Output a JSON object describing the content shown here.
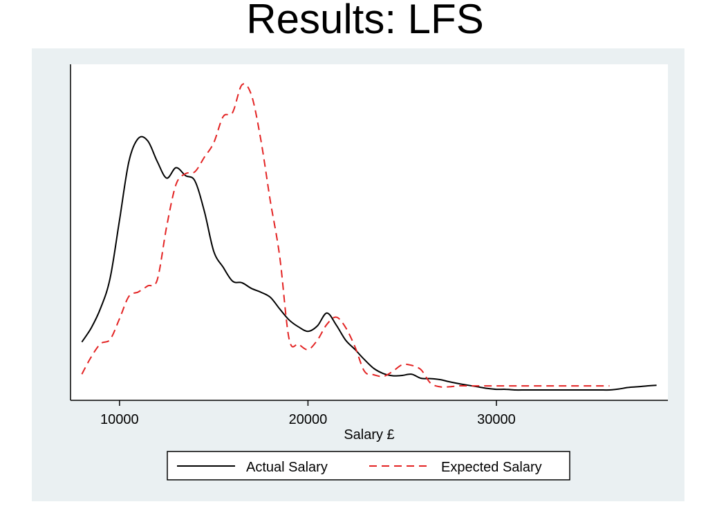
{
  "slide": {
    "title": "Results: LFS"
  },
  "colors": {
    "panel_background": "#eaf0f2",
    "plot_background": "#ffffff",
    "actual": "#000000",
    "expected": "#e32222"
  },
  "chart_data": {
    "type": "line",
    "title": "",
    "xlabel": "Salary £",
    "ylabel": "",
    "xlim": [
      7400,
      39100
    ],
    "ylim": [
      0,
      1
    ],
    "x_ticks": [
      10000,
      20000,
      30000
    ],
    "y_ticks": [],
    "y_axis_labels_shown": false,
    "grid": false,
    "legend_position": "bottom",
    "series": [
      {
        "name": "Actual Salary",
        "line_style": "solid",
        "color": "#000000",
        "x": [
          8000,
          8500,
          9000,
          9500,
          10000,
          10500,
          11000,
          11500,
          12000,
          12500,
          13000,
          13500,
          14000,
          14500,
          15000,
          15500,
          16000,
          16500,
          17000,
          17500,
          18000,
          18500,
          19000,
          19500,
          20000,
          20500,
          21000,
          21500,
          22000,
          22500,
          23000,
          23500,
          24000,
          24500,
          25000,
          25500,
          26000,
          26500,
          27000,
          27500,
          28000,
          28500,
          29000,
          29500,
          30000,
          30500,
          31000,
          31500,
          32000,
          32500,
          33000,
          33500,
          34000,
          34500,
          35000,
          35500,
          36000,
          36500,
          37000,
          37500,
          38000,
          38500
        ],
        "values": [
          0.152,
          0.197,
          0.26,
          0.354,
          0.539,
          0.725,
          0.798,
          0.79,
          0.725,
          0.672,
          0.705,
          0.68,
          0.663,
          0.567,
          0.44,
          0.389,
          0.345,
          0.34,
          0.322,
          0.31,
          0.294,
          0.257,
          0.222,
          0.2,
          0.186,
          0.203,
          0.244,
          0.206,
          0.158,
          0.128,
          0.096,
          0.068,
          0.052,
          0.045,
          0.046,
          0.05,
          0.037,
          0.036,
          0.033,
          0.026,
          0.02,
          0.015,
          0.01,
          0.005,
          0.002,
          0.002,
          0.0,
          0.0,
          0.0,
          0.0,
          0.0,
          0.0,
          0.0,
          0.0,
          0.0,
          0.0,
          0.0,
          0.003,
          0.008,
          0.01,
          0.013,
          0.015
        ]
      },
      {
        "name": "Expected Salary",
        "line_style": "dashed",
        "color": "#e32222",
        "x": [
          8000,
          8500,
          9000,
          9500,
          10000,
          10500,
          11000,
          11500,
          12000,
          12500,
          13000,
          13500,
          14000,
          14500,
          15000,
          15500,
          16000,
          16500,
          17000,
          17500,
          18000,
          18500,
          19000,
          19500,
          20000,
          20500,
          21000,
          21500,
          22000,
          22500,
          23000,
          23500,
          24000,
          24500,
          25000,
          25500,
          26000,
          26500,
          27000,
          27500,
          28000,
          28500,
          29000,
          29500,
          30000,
          30500,
          31000,
          31500,
          32000,
          32500,
          33000,
          33500,
          34000,
          34500,
          35000,
          35500,
          36000
        ],
        "values": [
          0.05,
          0.105,
          0.147,
          0.16,
          0.226,
          0.297,
          0.311,
          0.33,
          0.349,
          0.518,
          0.652,
          0.686,
          0.692,
          0.738,
          0.784,
          0.867,
          0.88,
          0.968,
          0.935,
          0.793,
          0.6,
          0.424,
          0.161,
          0.145,
          0.128,
          0.158,
          0.208,
          0.231,
          0.198,
          0.136,
          0.059,
          0.048,
          0.043,
          0.059,
          0.08,
          0.078,
          0.064,
          0.022,
          0.01,
          0.01,
          0.013,
          0.013,
          0.013,
          0.013,
          0.013,
          0.013,
          0.013,
          0.013,
          0.013,
          0.013,
          0.013,
          0.013,
          0.013,
          0.013,
          0.013,
          0.013,
          0.013
        ]
      }
    ]
  }
}
